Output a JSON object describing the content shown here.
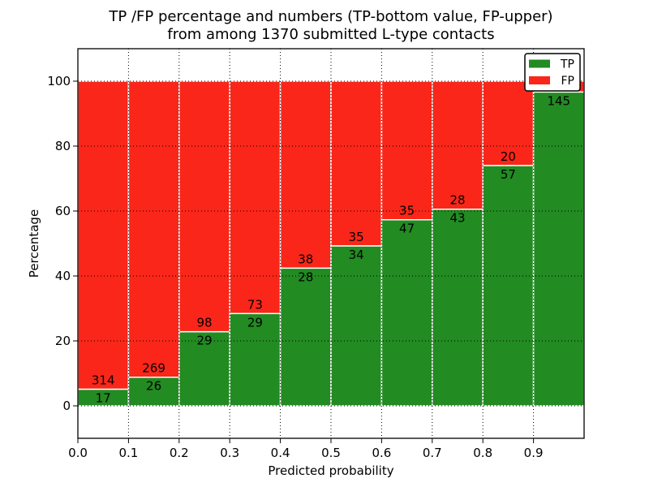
{
  "figure": {
    "title_line1": "TP /FP percentage and numbers (TP-bottom value, FP-upper)",
    "title_line2": "from among 1370 submitted L-type contacts",
    "xlabel": "Predicted probability",
    "ylabel": "Percentage"
  },
  "chart_data": {
    "type": "bar",
    "stacked": true,
    "title": "TP /FP percentage and numbers (TP-bottom value, FP-upper) from among 1370 submitted L-type contacts",
    "xlabel": "Predicted probability",
    "ylabel": "Percentage",
    "total_submitted_contacts": 1370,
    "x_tick_labels": [
      "0.0",
      "0.1",
      "0.2",
      "0.3",
      "0.4",
      "0.5",
      "0.6",
      "0.7",
      "0.8",
      "0.9"
    ],
    "y_tick_values": [
      0,
      20,
      40,
      60,
      80,
      100
    ],
    "xlim": [
      0.0,
      1.0
    ],
    "ylim": [
      -10,
      110
    ],
    "grid": true,
    "bar_bins": [
      [
        0.0,
        0.1
      ],
      [
        0.1,
        0.2
      ],
      [
        0.2,
        0.3
      ],
      [
        0.3,
        0.4
      ],
      [
        0.4,
        0.5
      ],
      [
        0.5,
        0.6
      ],
      [
        0.6,
        0.7
      ],
      [
        0.7,
        0.8
      ],
      [
        0.8,
        0.9
      ],
      [
        0.9,
        1.0
      ]
    ],
    "series": [
      {
        "name": "TP",
        "color": "#228b22",
        "counts": [
          17,
          26,
          29,
          29,
          28,
          34,
          47,
          43,
          57,
          145
        ]
      },
      {
        "name": "FP",
        "color": "#fa2619",
        "counts": [
          314,
          269,
          98,
          73,
          38,
          35,
          35,
          28,
          20,
          5
        ]
      }
    ],
    "y_unit": "percent of bin total (each bar stacked to 100)",
    "bar_edge_color": "#ffffff",
    "grid_color": "#000000",
    "legend": {
      "position": "upper right",
      "entries": [
        {
          "label": "TP",
          "color": "#228b22"
        },
        {
          "label": "FP",
          "color": "#fa2619"
        }
      ]
    },
    "last_fp_label_hidden_by_legend": true
  }
}
